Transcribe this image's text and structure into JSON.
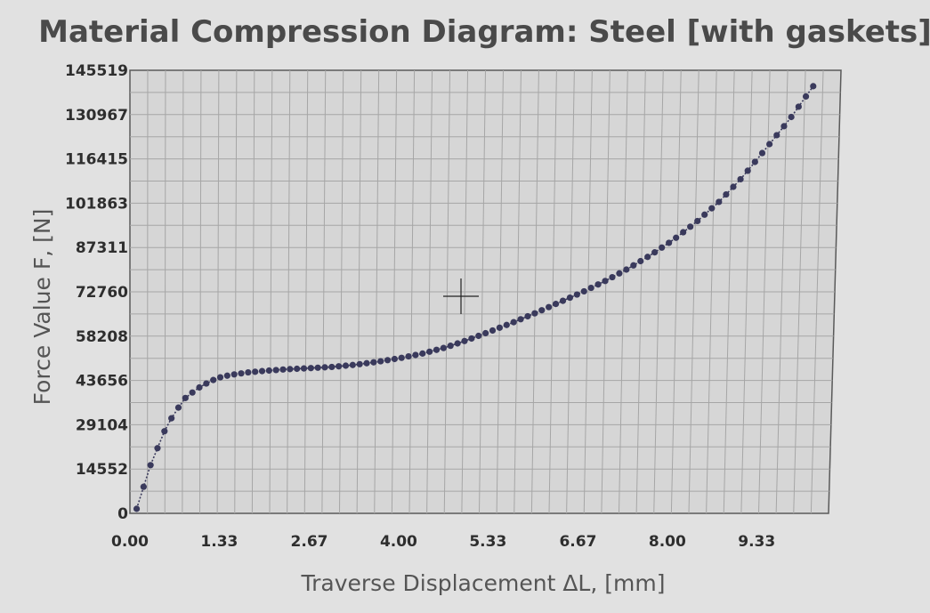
{
  "chart_data": {
    "type": "scatter",
    "title": "Material Compression Diagram: Steel [with gaskets]",
    "xlabel": "Traverse Displacement ΔL, [mm]",
    "ylabel": "Force Value F, [N]",
    "xlim": [
      0,
      10.4
    ],
    "ylim": [
      0,
      145519
    ],
    "x_ticks": [
      "0.00",
      "1.33",
      "2.67",
      "4.00",
      "5.33",
      "6.67",
      "8.00",
      "9.33"
    ],
    "y_ticks": [
      "0",
      "14552",
      "29104",
      "43656",
      "58208",
      "72760",
      "87311",
      "101863",
      "116415",
      "130967",
      "145519"
    ],
    "grid": true,
    "marker_color": "#3a3a5c",
    "x": [
      0.1,
      0.3,
      0.55,
      0.8,
      1.0,
      1.2,
      1.35,
      1.5,
      1.75,
      2.0,
      2.3,
      2.67,
      3.0,
      3.33,
      3.67,
      4.0,
      4.33,
      4.67,
      5.0,
      5.33,
      5.67,
      6.0,
      6.33,
      6.67,
      7.0,
      7.33,
      7.67,
      8.0,
      8.33,
      8.67,
      9.0,
      9.33,
      9.67,
      10.0
    ],
    "y": [
      1500,
      15500,
      29000,
      37500,
      41000,
      43500,
      44800,
      45500,
      46300,
      46800,
      47300,
      47700,
      48100,
      48800,
      49800,
      51000,
      52500,
      54500,
      57000,
      59800,
      62800,
      65900,
      69200,
      72600,
      76200,
      80200,
      84800,
      89800,
      95600,
      102500,
      110500,
      119800,
      129500,
      140300
    ]
  }
}
